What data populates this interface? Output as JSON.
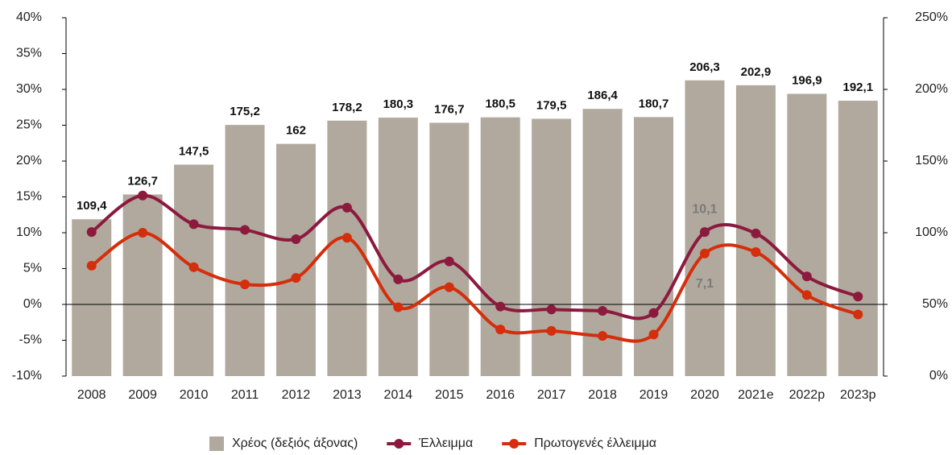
{
  "chart_data": {
    "type": "bar",
    "categories": [
      "2008",
      "2009",
      "2010",
      "2011",
      "2012",
      "2013",
      "2014",
      "2015",
      "2016",
      "2017",
      "2018",
      "2019",
      "2020",
      "2021e",
      "2022p",
      "2023p"
    ],
    "series": [
      {
        "name": "Χρέος (δεξιός άξονας)",
        "type": "bar",
        "axis": "y2",
        "color": "#b1a99d",
        "values": [
          109.4,
          126.7,
          147.5,
          175.2,
          162,
          178.2,
          180.3,
          176.7,
          180.5,
          179.5,
          186.4,
          180.7,
          206.3,
          202.9,
          196.9,
          192.1
        ],
        "value_labels": [
          "109,4",
          "126,7",
          "147,5",
          "175,2",
          "162",
          "178,2",
          "180,3",
          "176,7",
          "180,5",
          "179,5",
          "186,4",
          "180,7",
          "206,3",
          "202,9",
          "196,9",
          "192,1"
        ]
      },
      {
        "name": "Έλλειμμα",
        "type": "line",
        "color": "#8c1a3e",
        "values": [
          10.1,
          15.2,
          11.2,
          10.4,
          9.1,
          13.5,
          3.5,
          6.0,
          -0.3,
          -0.7,
          -0.9,
          -1.2,
          10.1,
          9.9,
          3.9,
          1.1
        ],
        "value_labels": [
          null,
          null,
          null,
          null,
          null,
          null,
          null,
          null,
          null,
          null,
          null,
          null,
          "10,1",
          null,
          null,
          null
        ]
      },
      {
        "name": "Πρωτογενές έλλειμμα",
        "type": "line",
        "color": "#d42e0c",
        "values": [
          5.4,
          10.0,
          5.2,
          2.8,
          3.7,
          9.3,
          -0.4,
          2.4,
          -3.5,
          -3.7,
          -4.4,
          -4.2,
          7.1,
          7.3,
          1.3,
          -1.4
        ],
        "value_labels": [
          null,
          null,
          null,
          null,
          null,
          null,
          null,
          null,
          null,
          null,
          null,
          null,
          "7,1",
          null,
          null,
          null
        ]
      }
    ],
    "ylim": [
      -10,
      40
    ],
    "yticks": [
      {
        "value": -10,
        "label": "-10%"
      },
      {
        "value": -5,
        "label": "-5%"
      },
      {
        "value": 0,
        "label": "0%"
      },
      {
        "value": 5,
        "label": "5%"
      },
      {
        "value": 10,
        "label": "10%"
      },
      {
        "value": 15,
        "label": "15%"
      },
      {
        "value": 20,
        "label": "20%"
      },
      {
        "value": 25,
        "label": "25%"
      },
      {
        "value": 30,
        "label": "30%"
      },
      {
        "value": 35,
        "label": "35%"
      },
      {
        "value": 40,
        "label": "40%"
      }
    ],
    "y2lim": [
      0,
      250
    ],
    "y2ticks": [
      {
        "value": 0,
        "label": "0%"
      },
      {
        "value": 50,
        "label": "50%"
      },
      {
        "value": 100,
        "label": "100%"
      },
      {
        "value": 150,
        "label": "150%"
      },
      {
        "value": 200,
        "label": "200%"
      },
      {
        "value": 250,
        "label": "250%"
      }
    ],
    "legend": "bottom"
  }
}
